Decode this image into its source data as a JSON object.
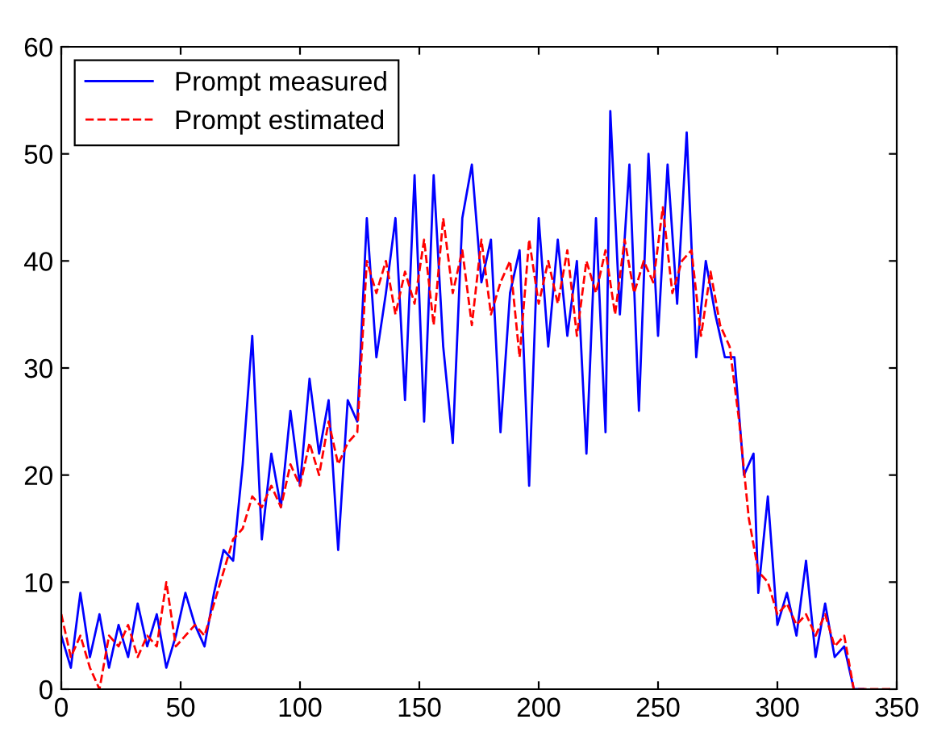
{
  "chart_data": {
    "type": "line",
    "xlim": [
      0,
      350
    ],
    "ylim": [
      0,
      60
    ],
    "xticks": [
      0,
      50,
      100,
      150,
      200,
      250,
      300,
      350
    ],
    "yticks": [
      0,
      10,
      20,
      30,
      40,
      50,
      60
    ],
    "grid": false,
    "legend": "top left",
    "marker": "none",
    "series": [
      {
        "name": "Prompt measured",
        "color": "#0000ff",
        "line_style": "solid",
        "x": [
          0,
          4,
          8,
          12,
          16,
          20,
          24,
          28,
          32,
          36,
          40,
          44,
          48,
          52,
          56,
          60,
          64,
          68,
          72,
          76,
          80,
          84,
          88,
          92,
          96,
          100,
          104,
          108,
          112,
          116,
          120,
          124,
          128,
          132,
          136,
          140,
          144,
          148,
          152,
          156,
          160,
          164,
          168,
          172,
          176,
          180,
          184,
          188,
          192,
          196,
          200,
          204,
          208,
          212,
          216,
          220,
          224,
          228,
          230,
          234,
          238,
          242,
          246,
          250,
          254,
          258,
          262,
          266,
          270,
          274,
          278,
          282,
          286,
          290,
          292,
          296,
          300,
          304,
          308,
          312,
          316,
          320,
          324,
          328,
          332,
          336
        ],
        "values": [
          5,
          2,
          9,
          3,
          7,
          2,
          6,
          3,
          8,
          4,
          7,
          2,
          5,
          9,
          6,
          4,
          9,
          13,
          12,
          21,
          33,
          14,
          22,
          17,
          26,
          19,
          29,
          22,
          27,
          13,
          27,
          25,
          44,
          31,
          37,
          44,
          27,
          48,
          25,
          48,
          32,
          23,
          44,
          49,
          38,
          42,
          24,
          37,
          41,
          19,
          44,
          32,
          42,
          33,
          40,
          22,
          44,
          24,
          54,
          35,
          49,
          26,
          50,
          33,
          49,
          36,
          52,
          31,
          40,
          35,
          31,
          31,
          20,
          22,
          9,
          18,
          6,
          9,
          5,
          12,
          3,
          8,
          3,
          4,
          0,
          0
        ]
      },
      {
        "name": "Prompt estimated",
        "color": "#ff0000",
        "line_style": "dashed",
        "x": [
          0,
          4,
          8,
          12,
          16,
          20,
          24,
          28,
          32,
          36,
          40,
          44,
          48,
          52,
          56,
          60,
          64,
          68,
          72,
          76,
          80,
          84,
          88,
          92,
          96,
          100,
          104,
          108,
          112,
          116,
          120,
          124,
          128,
          132,
          136,
          140,
          144,
          148,
          152,
          156,
          160,
          164,
          168,
          172,
          176,
          180,
          184,
          188,
          192,
          196,
          200,
          204,
          208,
          212,
          216,
          220,
          224,
          228,
          232,
          236,
          240,
          244,
          248,
          252,
          256,
          260,
          264,
          268,
          272,
          276,
          280,
          284,
          288,
          292,
          296,
          300,
          304,
          308,
          312,
          316,
          320,
          324,
          328,
          332,
          336,
          348
        ],
        "values": [
          7,
          3,
          5,
          2,
          0,
          5,
          4,
          6,
          3,
          5,
          4,
          10,
          4,
          5,
          6,
          5,
          8,
          11,
          14,
          15,
          18,
          17,
          19,
          17,
          21,
          19,
          23,
          20,
          25,
          21,
          23,
          24,
          40,
          37,
          40,
          35,
          39,
          36,
          42,
          34,
          44,
          37,
          41,
          34,
          42,
          35,
          38,
          40,
          31,
          42,
          36,
          40,
          36,
          41,
          33,
          40,
          37,
          41,
          35,
          42,
          37,
          40,
          38,
          45,
          37,
          40,
          41,
          33,
          39,
          34,
          32,
          25,
          16,
          11,
          10,
          7,
          8,
          6,
          7,
          5,
          7,
          4,
          5,
          0,
          0,
          0
        ]
      }
    ]
  }
}
